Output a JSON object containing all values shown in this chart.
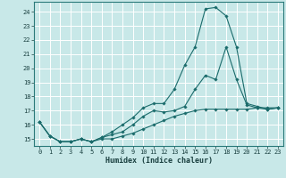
{
  "xlabel": "Humidex (Indice chaleur)",
  "bg_color": "#c8e8e8",
  "line_color": "#1a6b6b",
  "grid_color": "#ffffff",
  "xlim": [
    -0.5,
    23.5
  ],
  "ylim": [
    14.5,
    24.7
  ],
  "yticks": [
    15,
    16,
    17,
    18,
    19,
    20,
    21,
    22,
    23,
    24
  ],
  "xticks": [
    0,
    1,
    2,
    3,
    4,
    5,
    6,
    7,
    8,
    9,
    10,
    11,
    12,
    13,
    14,
    15,
    16,
    17,
    18,
    19,
    20,
    21,
    22,
    23
  ],
  "series": [
    {
      "x": [
        0,
        1,
        2,
        3,
        4,
        5,
        6,
        7,
        8,
        9,
        10,
        11,
        12,
        13,
        14,
        15,
        16,
        17,
        18,
        19,
        20,
        21,
        22,
        23
      ],
      "y": [
        16.2,
        15.2,
        14.8,
        14.8,
        15.0,
        14.8,
        15.0,
        15.0,
        15.2,
        15.4,
        15.7,
        16.0,
        16.3,
        16.6,
        16.8,
        17.0,
        17.1,
        17.1,
        17.1,
        17.1,
        17.1,
        17.2,
        17.2,
        17.2
      ]
    },
    {
      "x": [
        0,
        1,
        2,
        3,
        4,
        5,
        6,
        7,
        8,
        9,
        10,
        11,
        12,
        13,
        14,
        15,
        16,
        17,
        18,
        19,
        20,
        21,
        22,
        23
      ],
      "y": [
        16.2,
        15.2,
        14.8,
        14.8,
        15.0,
        14.8,
        15.1,
        15.3,
        15.5,
        16.0,
        16.6,
        17.0,
        16.9,
        17.0,
        17.3,
        18.5,
        19.5,
        19.2,
        21.5,
        19.2,
        17.4,
        17.2,
        17.1,
        17.2
      ]
    },
    {
      "x": [
        0,
        1,
        2,
        3,
        4,
        5,
        6,
        7,
        8,
        9,
        10,
        11,
        12,
        13,
        14,
        15,
        16,
        17,
        18,
        19,
        20,
        21,
        22,
        23
      ],
      "y": [
        16.2,
        15.2,
        14.8,
        14.8,
        15.0,
        14.8,
        15.1,
        15.5,
        16.0,
        16.5,
        17.2,
        17.5,
        17.5,
        18.5,
        20.2,
        21.5,
        24.2,
        24.3,
        23.7,
        21.5,
        17.5,
        17.3,
        17.1,
        17.2
      ]
    }
  ]
}
